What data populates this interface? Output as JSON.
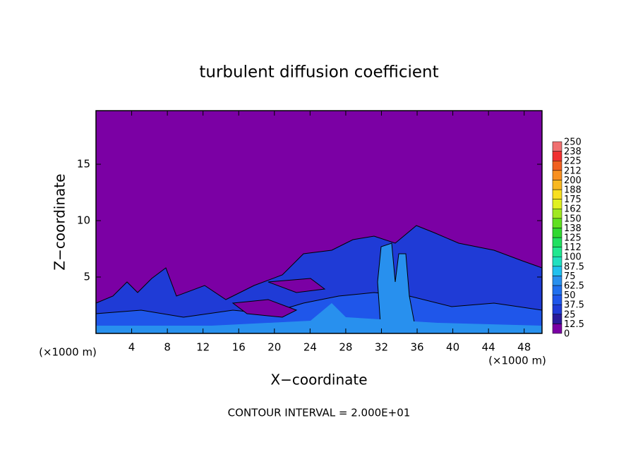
{
  "chart_data": {
    "type": "contour",
    "title": "turbulent diffusion coefficient",
    "x_label": "X−coordinate",
    "y_label": "Z−coordinate",
    "x_unit_left": "(×1000 m)",
    "x_unit_right": "(×1000 m)",
    "annotation": "CONTOUR INTERVAL = 2.000E+01",
    "xlim": [
      0,
      50
    ],
    "ylim": [
      0,
      19.75
    ],
    "xticks": [
      4,
      8,
      12,
      16,
      20,
      24,
      28,
      32,
      36,
      40,
      44,
      48
    ],
    "yticks": [
      5,
      10,
      15
    ],
    "colorbar": {
      "ticks": [
        0,
        12.5,
        25,
        37.5,
        50,
        62.5,
        75,
        87.5,
        100,
        {
          "value": 112.5,
          "label": "112"
        },
        125,
        {
          "value": 137.5,
          "label": "138"
        },
        150,
        {
          "value": 162.5,
          "label": "162"
        },
        175,
        {
          "value": 187.5,
          "label": "188"
        },
        200,
        {
          "value": 212.5,
          "label": "212"
        },
        225,
        {
          "value": 237.5,
          "label": "238"
        },
        250
      ],
      "colors": [
        "#7b00a4",
        "#2a1a9a",
        "#1f3bd6",
        "#1f56ea",
        "#2070ee",
        "#2890ee",
        "#20c0ee",
        "#20e0c0",
        "#20e890",
        "#20e060",
        "#30d830",
        "#60e020",
        "#a0e820",
        "#e0f020",
        "#f8e020",
        "#f8b820",
        "#f89020",
        "#f06020",
        "#f03030",
        "#f07070"
      ]
    }
  }
}
